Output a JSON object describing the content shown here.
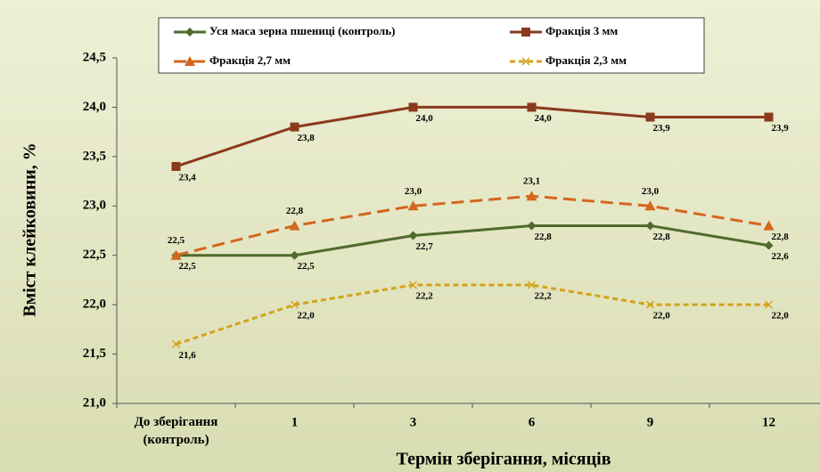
{
  "chart_data": {
    "type": "line",
    "x_label": "Термін зберігання, місяців",
    "y_label": "Вміст клейковини, %",
    "categories": [
      "До зберігання\n(контроль)",
      "1",
      "3",
      "6",
      "9",
      "12"
    ],
    "series": [
      {
        "name": "Уся маса зерна пшениці (контроль)",
        "color": "#4e6b2b",
        "marker": "diamond",
        "dash": "solid",
        "values": [
          22.5,
          22.5,
          22.7,
          22.8,
          22.8,
          22.6
        ],
        "value_labels": [
          "22,5",
          "22,5",
          "22,7",
          "22,8",
          "22,8",
          "22,6"
        ]
      },
      {
        "name": "Фракція 3 мм",
        "color": "#8a3a1c",
        "marker": "square",
        "dash": "solid",
        "values": [
          23.4,
          23.8,
          24.0,
          24.0,
          23.9,
          23.9
        ],
        "value_labels": [
          "23,4",
          "23,8",
          "24,0",
          "24,0",
          "23,9",
          "23,9"
        ]
      },
      {
        "name": "Фракція 2,7 мм",
        "color": "#d4661e",
        "marker": "triangle",
        "dash": "long",
        "values": [
          22.5,
          22.8,
          23.0,
          23.1,
          23.0,
          22.8
        ],
        "value_labels": [
          "22,5",
          "22,8",
          "23,0",
          "23,1",
          "23,0",
          "22,8"
        ]
      },
      {
        "name": "Фракція 2,3 мм",
        "color": "#d4a21a",
        "marker": "x",
        "dash": "short",
        "values": [
          21.6,
          22.0,
          22.2,
          22.2,
          22.0,
          22.0
        ],
        "value_labels": [
          "21,6",
          "22,0",
          "22,2",
          "22,2",
          "22,0",
          "22,0"
        ]
      }
    ],
    "ylim": [
      21.0,
      24.5
    ],
    "yticks": [
      {
        "value": 21.0,
        "label": "21,0"
      },
      {
        "value": 21.5,
        "label": "21,5"
      },
      {
        "value": 22.0,
        "label": "22,0"
      },
      {
        "value": 22.5,
        "label": "22,5"
      },
      {
        "value": 23.0,
        "label": "23,0"
      },
      {
        "value": 23.5,
        "label": "23,5"
      },
      {
        "value": 24.0,
        "label": "24,0"
      },
      {
        "value": 24.5,
        "label": "24,5"
      }
    ],
    "grid": false
  }
}
